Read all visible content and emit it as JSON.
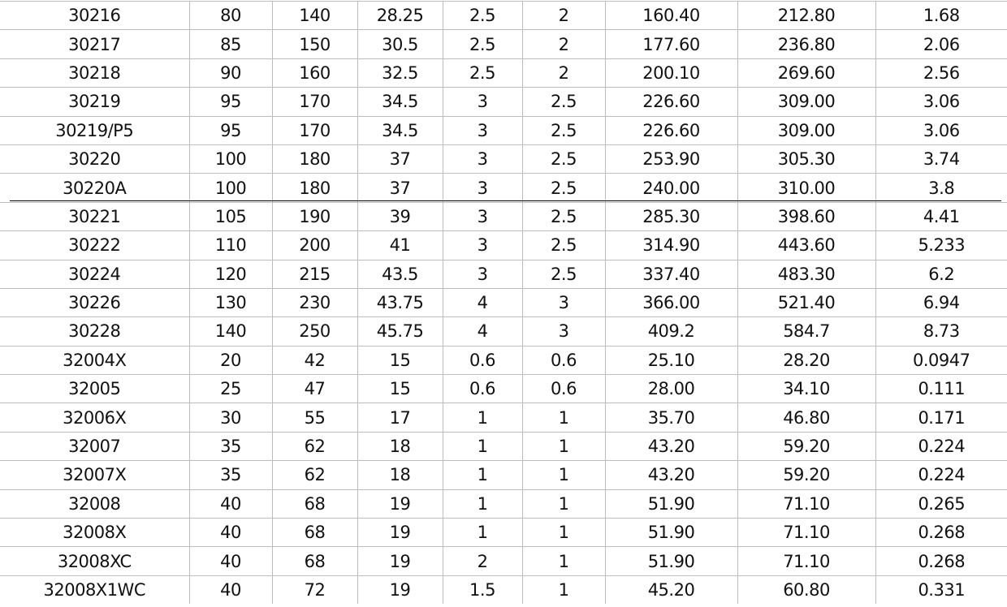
{
  "table": {
    "rows": [
      [
        "30216",
        "80",
        "140",
        "28.25",
        "2.5",
        "2",
        "160.40",
        "212.80",
        "1.68"
      ],
      [
        "30217",
        "85",
        "150",
        "30.5",
        "2.5",
        "2",
        "177.60",
        "236.80",
        "2.06"
      ],
      [
        "30218",
        "90",
        "160",
        "32.5",
        "2.5",
        "2",
        "200.10",
        "269.60",
        "2.56"
      ],
      [
        "30219",
        "95",
        "170",
        "34.5",
        "3",
        "2.5",
        "226.60",
        "309.00",
        "3.06"
      ],
      [
        "30219/P5",
        "95",
        "170",
        "34.5",
        "3",
        "2.5",
        "226.60",
        "309.00",
        "3.06"
      ],
      [
        "30220",
        "100",
        "180",
        "37",
        "3",
        "2.5",
        "253.90",
        "305.30",
        "3.74"
      ],
      [
        "30220A",
        "100",
        "180",
        "37",
        "3",
        "2.5",
        "240.00",
        "310.00",
        "3.8"
      ],
      [
        "30221",
        "105",
        "190",
        "39",
        "3",
        "2.5",
        "285.30",
        "398.60",
        "4.41"
      ],
      [
        "30222",
        "110",
        "200",
        "41",
        "3",
        "2.5",
        "314.90",
        "443.60",
        "5.233"
      ],
      [
        "30224",
        "120",
        "215",
        "43.5",
        "3",
        "2.5",
        "337.40",
        "483.30",
        "6.2"
      ],
      [
        "30226",
        "130",
        "230",
        "43.75",
        "4",
        "3",
        "366.00",
        "521.40",
        "6.94"
      ],
      [
        "30228",
        "140",
        "250",
        "45.75",
        "4",
        "3",
        "409.2",
        "584.7",
        "8.73"
      ],
      [
        "32004X",
        "20",
        "42",
        "15",
        "0.6",
        "0.6",
        "25.10",
        "28.20",
        "0.0947"
      ],
      [
        "32005",
        "25",
        "47",
        "15",
        "0.6",
        "0.6",
        "28.00",
        "34.10",
        "0.111"
      ],
      [
        "32006X",
        "30",
        "55",
        "17",
        "1",
        "1",
        "35.70",
        "46.80",
        "0.171"
      ],
      [
        "32007",
        "35",
        "62",
        "18",
        "1",
        "1",
        "43.20",
        "59.20",
        "0.224"
      ],
      [
        "32007X",
        "35",
        "62",
        "18",
        "1",
        "1",
        "43.20",
        "59.20",
        "0.224"
      ],
      [
        "32008",
        "40",
        "68",
        "19",
        "1",
        "1",
        "51.90",
        "71.10",
        "0.265"
      ],
      [
        "32008X",
        "40",
        "68",
        "19",
        "1",
        "1",
        "51.90",
        "71.10",
        "0.268"
      ],
      [
        "32008XC",
        "40",
        "68",
        "19",
        "2",
        "1",
        "51.90",
        "71.10",
        "0.268"
      ],
      [
        "32008X1WC",
        "40",
        "72",
        "19",
        "1.5",
        "1",
        "45.20",
        "60.80",
        "0.331"
      ]
    ]
  }
}
